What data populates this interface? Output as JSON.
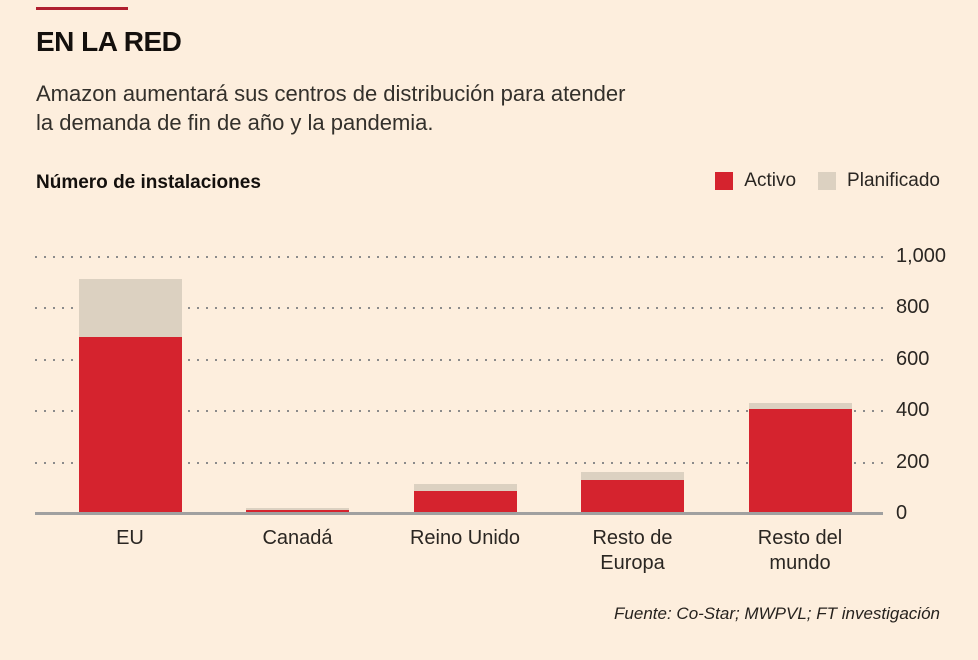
{
  "page": {
    "title": "EN LA RED",
    "subtitle": "Amazon aumentará sus centros de distribución para atender\nla demanda de fin de año y la pandemia.",
    "chart_heading": "Número de instalaciones",
    "source": "Fuente: Co-Star; MWPVL; FT investigación"
  },
  "legend": [
    {
      "label": "Activo",
      "color": "#d5232e"
    },
    {
      "label": "Planificado",
      "color": "#dcd1c1"
    }
  ],
  "colors": {
    "background": "#fdeedd",
    "active": "#d5232e",
    "planned": "#dcd1c1",
    "gridline": "#8b8b8b",
    "baseline": "#a0a0a0",
    "accent_rule": "#b01f2e"
  },
  "chart_data": {
    "type": "bar",
    "stacked": true,
    "title": "Número de instalaciones",
    "categories": [
      "EU",
      "Canadá",
      "Reino Unido",
      "Resto de\nEuropa",
      "Resto del\nmundo"
    ],
    "series": [
      {
        "name": "Activo",
        "color": "#d5232e",
        "values": [
          690,
          15,
          90,
          133,
          410
        ]
      },
      {
        "name": "Planificado",
        "color": "#dcd1c1",
        "values": [
          225,
          8,
          25,
          30,
          22
        ]
      }
    ],
    "totals": [
      915,
      23,
      115,
      163,
      432
    ],
    "ylabel": "Número de instalaciones",
    "ylim": [
      0,
      1000
    ],
    "yticks": [
      0,
      200,
      400,
      600,
      800,
      1000
    ],
    "ytick_labels": [
      "0",
      "200",
      "400",
      "600",
      "800",
      "1,000"
    ],
    "grid": "horizontal-dotted",
    "axis_side": "right",
    "legend_position": "top-right"
  }
}
